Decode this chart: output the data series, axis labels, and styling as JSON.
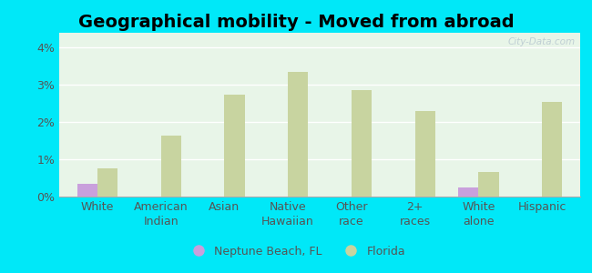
{
  "title": "Geographical mobility - Moved from abroad",
  "categories": [
    "White",
    "American\nIndian",
    "Asian",
    "Native\nHawaiian",
    "Other\nrace",
    "2+\nraces",
    "White\nalone",
    "Hispanic"
  ],
  "neptune_values": [
    0.35,
    0.0,
    0.0,
    0.0,
    0.0,
    0.0,
    0.25,
    0.0
  ],
  "florida_values": [
    0.75,
    1.65,
    2.75,
    3.35,
    2.85,
    2.3,
    0.65,
    2.55
  ],
  "neptune_color": "#c9a0dc",
  "florida_color": "#c8d4a0",
  "background_outer": "#00e8f8",
  "background_inner_top": "#e8f5e8",
  "background_inner_bottom": "#f0faf0",
  "ylim": [
    0,
    4.4
  ],
  "yticks": [
    0,
    1,
    2,
    3,
    4
  ],
  "ytick_labels": [
    "0%",
    "1%",
    "2%",
    "3%",
    "4%"
  ],
  "legend_neptune": "Neptune Beach, FL",
  "legend_florida": "Florida",
  "bar_width": 0.32,
  "title_fontsize": 14,
  "tick_fontsize": 9,
  "watermark": "City-Data.com"
}
